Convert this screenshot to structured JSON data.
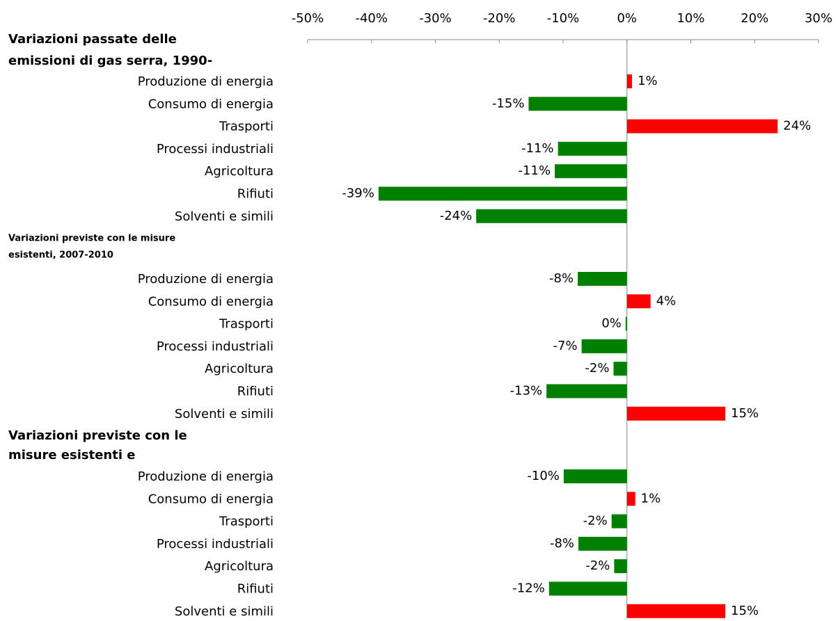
{
  "chart_data": {
    "type": "hbar-grouped",
    "xlim": [
      -50,
      30
    ],
    "xticks": [
      {
        "value": -50,
        "label": "-50%"
      },
      {
        "value": -40,
        "label": "-40%"
      },
      {
        "value": -30,
        "label": "-30%"
      },
      {
        "value": -20,
        "label": "-20%"
      },
      {
        "value": -10,
        "label": "-10%"
      },
      {
        "value": 0,
        "label": "0%"
      },
      {
        "value": 10,
        "label": "10%"
      },
      {
        "value": 20,
        "label": "20%"
      },
      {
        "value": 30,
        "label": "30%"
      }
    ],
    "colors": {
      "positive": "#ff0000",
      "negative": "#008000"
    },
    "groups": [
      {
        "title_lines": [
          "Variazioni passate delle",
          "emissioni di gas serra, 1990-"
        ],
        "categories": [
          "Produzione di energia",
          "Consumo di energia",
          "Trasporti",
          "Processi industriali",
          "Agricoltura",
          "Rifiuti",
          "Solventi e simili"
        ],
        "values": [
          0.8,
          -15.4,
          23.6,
          -10.8,
          -11.3,
          -38.9,
          -23.6
        ],
        "value_labels": [
          "1%",
          "-15%",
          "24%",
          "-11%",
          "-11%",
          "-39%",
          "-24%"
        ]
      },
      {
        "title_lines": [
          "Variazioni previste con le misure",
          "esistenti, 2007-2010"
        ],
        "categories": [
          "Produzione di energia",
          "Consumo di energia",
          "Trasporti",
          "Processi industriali",
          "Agricoltura",
          "Rifiuti",
          "Solventi e simili"
        ],
        "values": [
          -7.7,
          3.7,
          -0.2,
          -7.1,
          -2.1,
          -12.6,
          15.4
        ],
        "value_labels": [
          "-8%",
          "4%",
          "0%",
          "-7%",
          "-2%",
          "-13%",
          "15%"
        ]
      },
      {
        "title_lines": [
          "Variazioni previste con le",
          "misure esistenti e"
        ],
        "categories": [
          "Produzione di energia",
          "Consumo di energia",
          "Trasporti",
          "Processi industriali",
          "Agricoltura",
          "Rifiuti",
          "Solventi e simili"
        ],
        "values": [
          -9.9,
          1.3,
          -2.4,
          -7.6,
          -2.0,
          -12.2,
          15.4
        ],
        "value_labels": [
          "-10%",
          "1%",
          "-2%",
          "-8%",
          "-2%",
          "-12%",
          "15%"
        ]
      }
    ]
  }
}
